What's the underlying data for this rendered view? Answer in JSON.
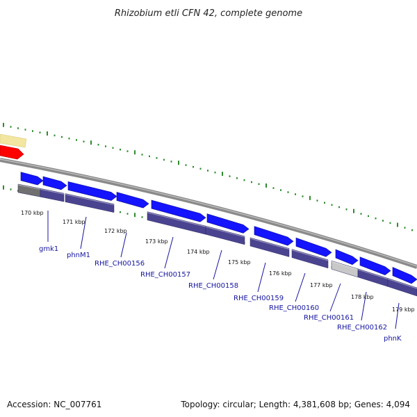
{
  "title": "Rhizobium etli CFN 42, complete genome",
  "footer": {
    "accession": "Accession: NC_007761",
    "summary": "Topology: circular; Length: 4,381,608 bp; Genes: 4,094"
  },
  "colors": {
    "backbone": "#8a8a8a",
    "gene_forward": "#1414ff",
    "cds_track": "#4a4490",
    "gc_dots": "#2e8b2e",
    "gene_label": "#1414a0",
    "feature_yellow": "#f2e6a0",
    "feature_red": "#ff0000",
    "feature_gray": "#707070",
    "feature_lightgray": "#c8c8c8"
  },
  "ruler": [
    "170 kbp",
    "171 kbp",
    "172 kbp",
    "173 kbp",
    "174 kbp",
    "175 kbp",
    "176 kbp",
    "177 kbp",
    "178 kbp",
    "179 kbp"
  ],
  "genes": [
    "gmk1",
    "phnM1",
    "RHE_CH00156",
    "RHE_CH00157",
    "RHE_CH00158",
    "RHE_CH00159",
    "RHE_CH00160",
    "RHE_CH00161",
    "RHE_CH00162",
    "phnK"
  ]
}
